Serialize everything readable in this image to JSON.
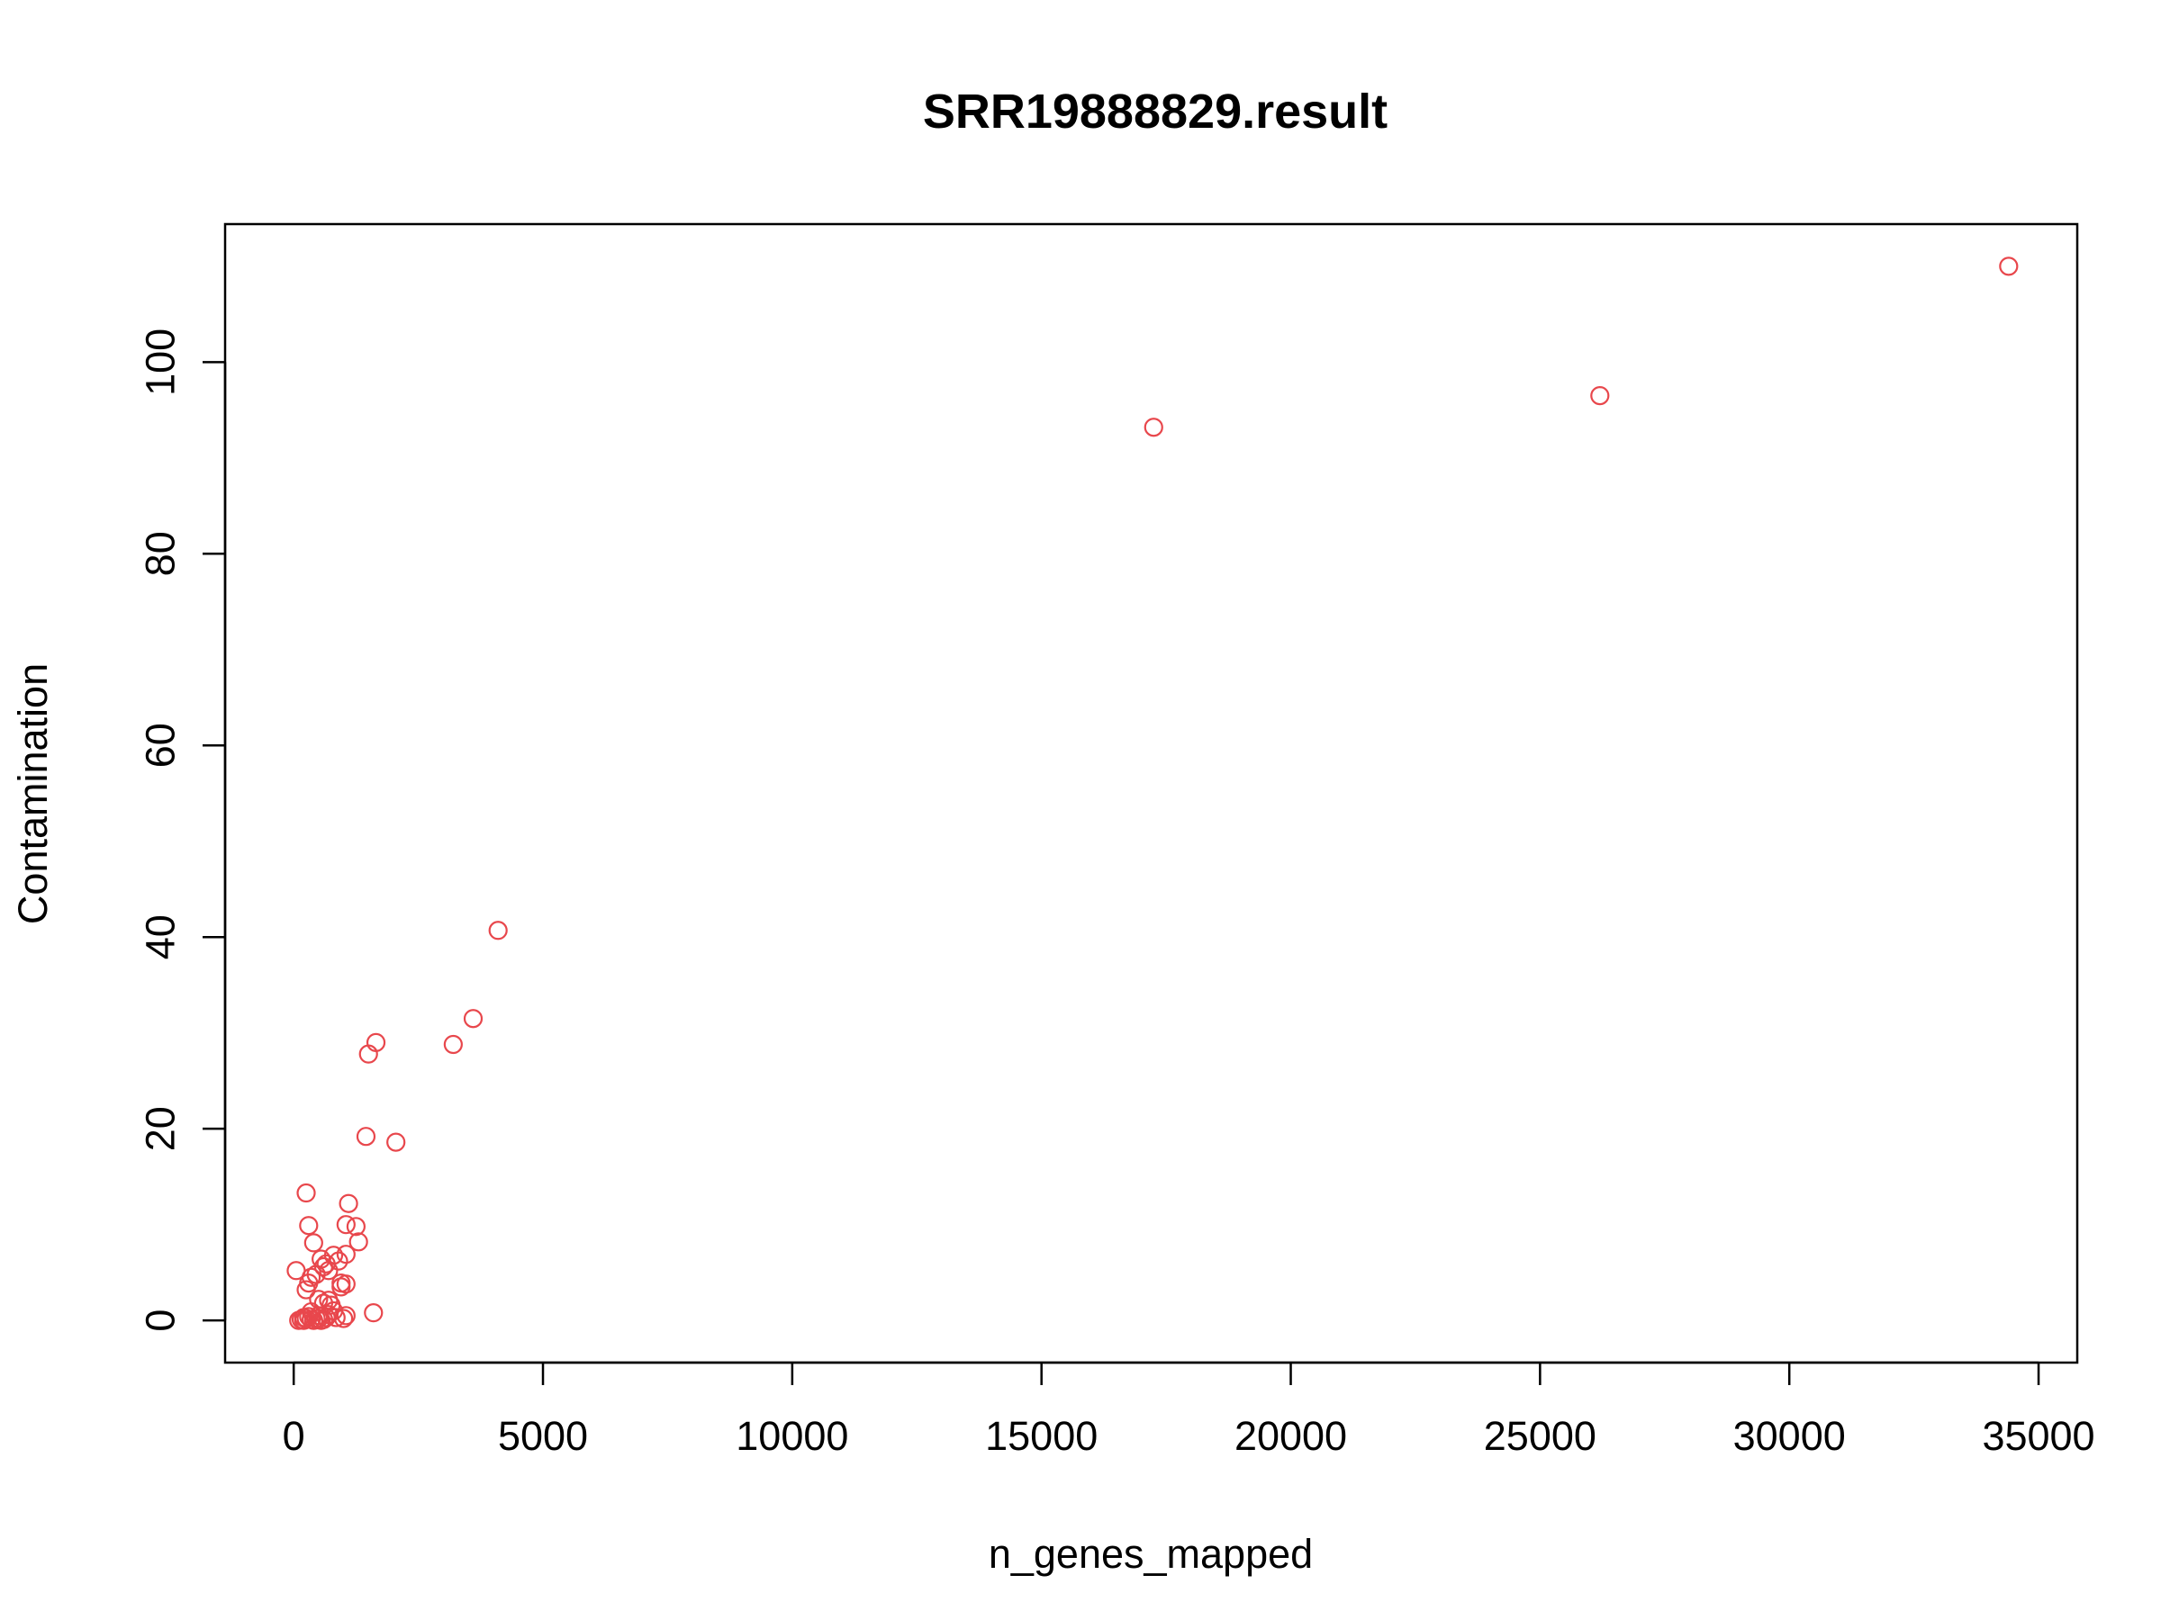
{
  "chart_data": {
    "type": "scatter",
    "title": "SRR19888829.result",
    "xlabel": "n_genes_mapped",
    "ylabel": "Contamination",
    "xlim": [
      -1376,
      35776
    ],
    "ylim": [
      -4.4,
      114.4
    ],
    "xticks": [
      0,
      5000,
      10000,
      15000,
      20000,
      25000,
      30000,
      35000
    ],
    "yticks": [
      0,
      20,
      40,
      60,
      80,
      100
    ],
    "xtick_labels": [
      "0",
      "5000",
      "10000",
      "15000",
      "20000",
      "25000",
      "30000",
      "35000"
    ],
    "ytick_labels": [
      "0",
      "20",
      "40",
      "60",
      "80",
      "100"
    ],
    "grid": false,
    "legend": "none",
    "marker": "open-circle",
    "point_color": "#e8474c",
    "series": [
      {
        "x": [
          34400,
          26200,
          17250,
          4100,
          3600,
          3200,
          1650,
          1500,
          1450,
          2050,
          1600,
          250,
          1100,
          300,
          1050,
          1250,
          1300,
          400,
          50,
          800,
          900,
          1050,
          550,
          650,
          700,
          600,
          450,
          350,
          300,
          250,
          950,
          1050,
          950,
          700,
          600,
          500,
          750,
          800,
          700,
          500,
          350,
          200,
          300,
          150,
          250,
          400,
          450,
          600,
          650,
          850,
          1000,
          1050,
          500,
          100,
          200,
          350,
          550
        ],
        "y": [
          110,
          96.5,
          93.2,
          40.7,
          31.5,
          28.8,
          29,
          27.8,
          19.2,
          18.6,
          0.8,
          13.3,
          12.2,
          9.9,
          10,
          9.8,
          8.2,
          8.1,
          5.2,
          6.8,
          6.2,
          6.9,
          6.4,
          5.9,
          5.2,
          5.6,
          4.8,
          4.5,
          3.9,
          3.2,
          3.9,
          3.8,
          3.5,
          2.1,
          1.8,
          2.2,
          1.6,
          1,
          0.6,
          0.5,
          0.9,
          0.3,
          0.4,
          0.1,
          0.2,
          0,
          0.2,
          0.1,
          0.3,
          0.3,
          0.2,
          0.5,
          0.2,
          0,
          0,
          0.1,
          0
        ]
      }
    ]
  }
}
